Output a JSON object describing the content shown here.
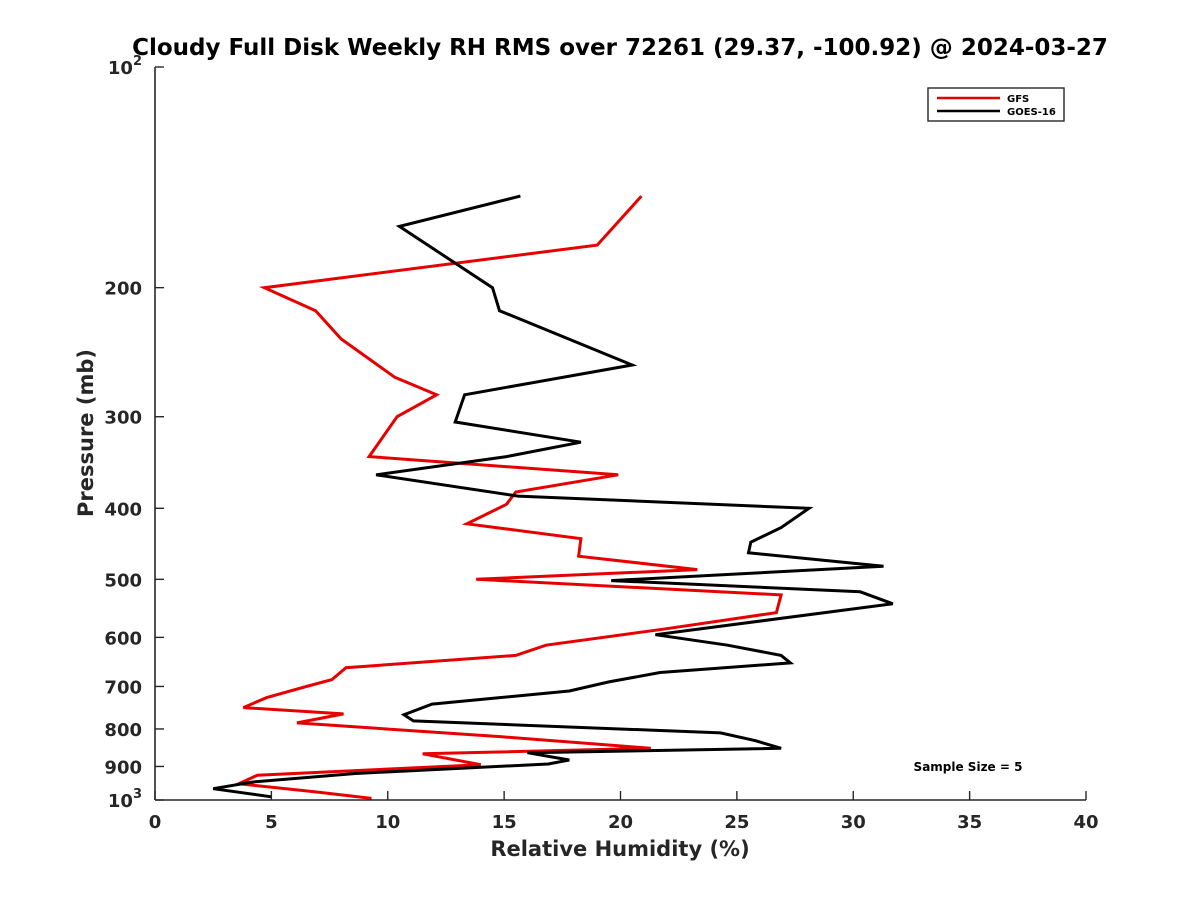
{
  "chart_data": {
    "type": "line",
    "title": "Cloudy Full Disk Weekly RH RMS over 72261 (29.37, -100.92) @ 2024-03-27",
    "xlabel": "Relative Humidity (%)",
    "ylabel": "Pressure (mb)",
    "xlim": [
      0,
      40
    ],
    "ylim": [
      1000,
      100
    ],
    "y_scale": "log",
    "y_reversed": true,
    "grid": false,
    "legend_position": "top-right",
    "x_ticks": [
      "0",
      "5",
      "10",
      "15",
      "20",
      "25",
      "30",
      "35",
      "40"
    ],
    "y_ticks": [
      {
        "value": 100,
        "base": "10",
        "exp": "2"
      },
      {
        "value": 200,
        "label": "200"
      },
      {
        "value": 300,
        "label": "300"
      },
      {
        "value": 400,
        "label": "400"
      },
      {
        "value": 500,
        "label": "500"
      },
      {
        "value": 600,
        "label": "600"
      },
      {
        "value": 700,
        "label": "700"
      },
      {
        "value": 800,
        "label": "800"
      },
      {
        "value": 900,
        "label": "900"
      },
      {
        "value": 1000,
        "base": "10",
        "exp": "3"
      }
    ],
    "annotation": "Sample Size = 5",
    "series": [
      {
        "name": "GFS",
        "color": "#e60000",
        "points": [
          [
            20.9,
            150
          ],
          [
            19.0,
            175
          ],
          [
            4.7,
            200
          ],
          [
            6.9,
            215
          ],
          [
            8.0,
            235
          ],
          [
            10.3,
            265
          ],
          [
            12.1,
            280
          ],
          [
            10.4,
            300
          ],
          [
            9.2,
            340
          ],
          [
            19.9,
            360
          ],
          [
            15.5,
            380
          ],
          [
            15.1,
            395
          ],
          [
            13.4,
            420
          ],
          [
            18.3,
            440
          ],
          [
            18.2,
            465
          ],
          [
            23.3,
            485
          ],
          [
            13.8,
            500
          ],
          [
            26.9,
            525
          ],
          [
            26.7,
            555
          ],
          [
            21.8,
            585
          ],
          [
            16.8,
            615
          ],
          [
            15.5,
            635
          ],
          [
            8.2,
            660
          ],
          [
            7.6,
            685
          ],
          [
            6.5,
            700
          ],
          [
            4.8,
            725
          ],
          [
            3.8,
            748
          ],
          [
            8.1,
            763
          ],
          [
            6.1,
            785
          ],
          [
            14.9,
            820
          ],
          [
            21.3,
            850
          ],
          [
            11.5,
            865
          ],
          [
            14.0,
            895
          ],
          [
            4.4,
            925
          ],
          [
            3.6,
            950
          ],
          [
            6.9,
            975
          ],
          [
            9.3,
            995
          ]
        ]
      },
      {
        "name": "GOES-16",
        "color": "#000000",
        "points": [
          [
            15.7,
            150
          ],
          [
            10.5,
            165
          ],
          [
            14.5,
            200
          ],
          [
            14.8,
            215
          ],
          [
            20.5,
            255
          ],
          [
            13.3,
            280
          ],
          [
            12.9,
            305
          ],
          [
            18.3,
            325
          ],
          [
            15.1,
            340
          ],
          [
            9.5,
            360
          ],
          [
            15.6,
            385
          ],
          [
            28.1,
            400
          ],
          [
            26.9,
            425
          ],
          [
            25.6,
            445
          ],
          [
            25.5,
            460
          ],
          [
            31.3,
            480
          ],
          [
            19.6,
            502
          ],
          [
            30.3,
            520
          ],
          [
            31.7,
            540
          ],
          [
            21.5,
            595
          ],
          [
            24.6,
            615
          ],
          [
            26.9,
            635
          ],
          [
            27.3,
            650
          ],
          [
            21.7,
            670
          ],
          [
            19.5,
            690
          ],
          [
            17.8,
            710
          ],
          [
            11.9,
            740
          ],
          [
            10.7,
            765
          ],
          [
            11.1,
            780
          ],
          [
            24.3,
            810
          ],
          [
            25.8,
            830
          ],
          [
            26.9,
            850
          ],
          [
            16.0,
            862
          ],
          [
            17.8,
            882
          ],
          [
            16.9,
            893
          ],
          [
            8.6,
            920
          ],
          [
            4.2,
            945
          ],
          [
            2.5,
            965
          ],
          [
            5.0,
            990
          ]
        ]
      }
    ]
  }
}
